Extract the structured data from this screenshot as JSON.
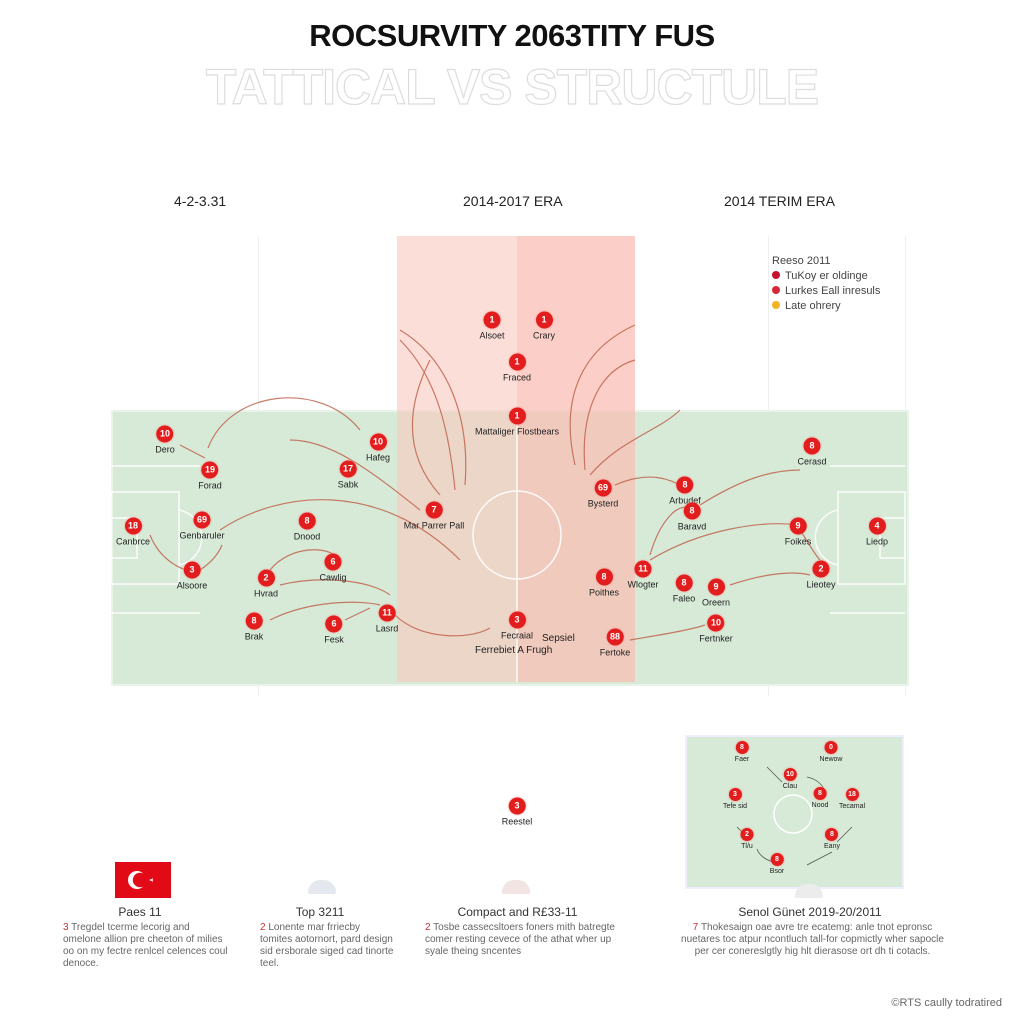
{
  "header": {
    "title": "ROCSURVITY 2063TITY FUS",
    "subtitle": "TATTICAL VS STRUCTULE"
  },
  "eras": [
    "4-2-3.31",
    "2014-2017 ERA",
    "2014 TERIM ERA"
  ],
  "legend": {
    "title": "Reeso 2011",
    "items": [
      {
        "label": "TuKoy er oldinge",
        "color": "#c8102e"
      },
      {
        "label": "Lurkes Eall inresuls",
        "color": "#d62839"
      },
      {
        "label": "Late ohrery",
        "color": "#f0b323"
      }
    ]
  },
  "colors": {
    "player": "#e11d1d",
    "pitch": "#d6ead7",
    "zone": "#fac8be",
    "arrow": "#c0654f"
  },
  "players": [
    {
      "num": "10",
      "label": "Dero"
    },
    {
      "num": "19",
      "label": "Forad"
    },
    {
      "num": "10",
      "label": "Hafeg"
    },
    {
      "num": "17",
      "label": "Sabk"
    },
    {
      "num": "18",
      "label": "Canbrce"
    },
    {
      "num": "69",
      "label": "Genbaruler"
    },
    {
      "num": "8",
      "label": "Dnood"
    },
    {
      "num": "7",
      "label": "Mar Parrer Pall"
    },
    {
      "num": "3",
      "label": "Alsoore"
    },
    {
      "num": "2",
      "label": "Hvrad"
    },
    {
      "num": "6",
      "label": "Cawlig"
    },
    {
      "num": "8",
      "label": "Brak"
    },
    {
      "num": "6",
      "label": "Fesk"
    },
    {
      "num": "11",
      "label": "Lasrd"
    },
    {
      "num": "1",
      "label": "Alsoet"
    },
    {
      "num": "1",
      "label": "Crary"
    },
    {
      "num": "1",
      "label": "Fraced"
    },
    {
      "num": "1",
      "label": "Mattaliger Flostbears"
    },
    {
      "num": "3",
      "label": "Fecraial"
    },
    {
      "num": "69",
      "label": "Bysterd"
    },
    {
      "num": "8",
      "label": "Arbudef"
    },
    {
      "num": "8",
      "label": "Baravd"
    },
    {
      "num": "8",
      "label": "Poithes"
    },
    {
      "num": "11",
      "label": "Wlogter"
    },
    {
      "num": "8",
      "label": "Faleo"
    },
    {
      "num": "9",
      "label": "Oreern"
    },
    {
      "num": "10",
      "label": "Fertnker"
    },
    {
      "num": "88",
      "label": "Fertoke"
    },
    {
      "num": "8",
      "label": "Cerasd"
    },
    {
      "num": "9",
      "label": "Foikes"
    },
    {
      "num": "4",
      "label": "Liedp"
    },
    {
      "num": "2",
      "label": "Lieotey"
    }
  ],
  "annotations": [
    "Sepsiel",
    "Ferrebiet A Frugh"
  ],
  "center_player": {
    "num": "3",
    "label": "Reestel"
  },
  "mini_players": [
    {
      "num": "8",
      "label": "Faer"
    },
    {
      "num": "0",
      "label": "Newow"
    },
    {
      "num": "10",
      "label": "Clau"
    },
    {
      "num": "8",
      "label": "Nood"
    },
    {
      "num": "3",
      "label": "Tefe sid"
    },
    {
      "num": "18",
      "label": "Tecamal"
    },
    {
      "num": "2",
      "label": "Tl/u"
    },
    {
      "num": "8",
      "label": "Eany"
    },
    {
      "num": "8",
      "label": "Bsor"
    }
  ],
  "columns": [
    {
      "title": "Paes 11",
      "num": "3",
      "text": "Tregdel tcerme lecorig and omelone allion pre cheeton of milies oo on my fectre renlcel celences coul denoce."
    },
    {
      "title": "Top 3211",
      "num": "2",
      "text": "Lonente mar frriecby tomites aotornort, pard design sid ersborale siged cad tinorte teel."
    },
    {
      "title": "Compact and R£33-11",
      "num": "2",
      "text": "Tosbe cassecsltoers foners mith batregte comer resting cevece of the athat wher up syale theing sncentes"
    },
    {
      "title": "Senol Günet 2019-20/2011",
      "num": "7",
      "text": "Thokesaign oae avre tre ecatemg: anle tnot epronsc nuetares toc atpur ncontluch tall-for copmictly wher sapocle per cer conereslgtly hig hlt dierasose ort dh ti cotacls."
    }
  ],
  "credit": "©RTS caully todratired"
}
